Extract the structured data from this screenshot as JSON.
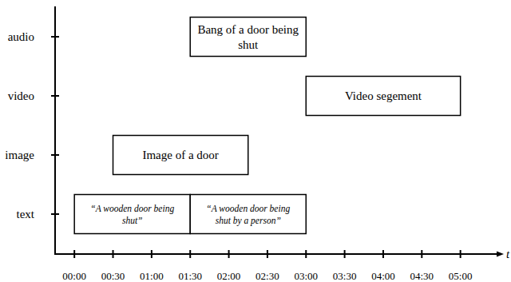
{
  "chart_data": {
    "type": "gantt",
    "categories": [
      "text",
      "image",
      "video",
      "audio"
    ],
    "x_label": "t",
    "xlim": [
      -15,
      330
    ],
    "xticks": [
      {
        "value": 0,
        "label": "00:00"
      },
      {
        "value": 30,
        "label": "00:30"
      },
      {
        "value": 60,
        "label": "01:00"
      },
      {
        "value": 90,
        "label": "01:30"
      },
      {
        "value": 120,
        "label": "02:00"
      },
      {
        "value": 150,
        "label": "02:30"
      },
      {
        "value": 180,
        "label": "03:00"
      },
      {
        "value": 210,
        "label": "03:30"
      },
      {
        "value": 240,
        "label": "04:00"
      },
      {
        "value": 270,
        "label": "04:30"
      },
      {
        "value": 300,
        "label": "05:00"
      }
    ],
    "bars": [
      {
        "category": "text",
        "start": 0,
        "end": 90,
        "label": "“A wooden door being shut”"
      },
      {
        "category": "text",
        "start": 90,
        "end": 180,
        "label": "“A wooden door being shut by a person”"
      },
      {
        "category": "image",
        "start": 30,
        "end": 135,
        "label": "Image of a door"
      },
      {
        "category": "audio",
        "start": 90,
        "end": 180,
        "label": "Bang of a door being shut"
      },
      {
        "category": "video",
        "start": 180,
        "end": 300,
        "label": "Video segement"
      }
    ]
  }
}
